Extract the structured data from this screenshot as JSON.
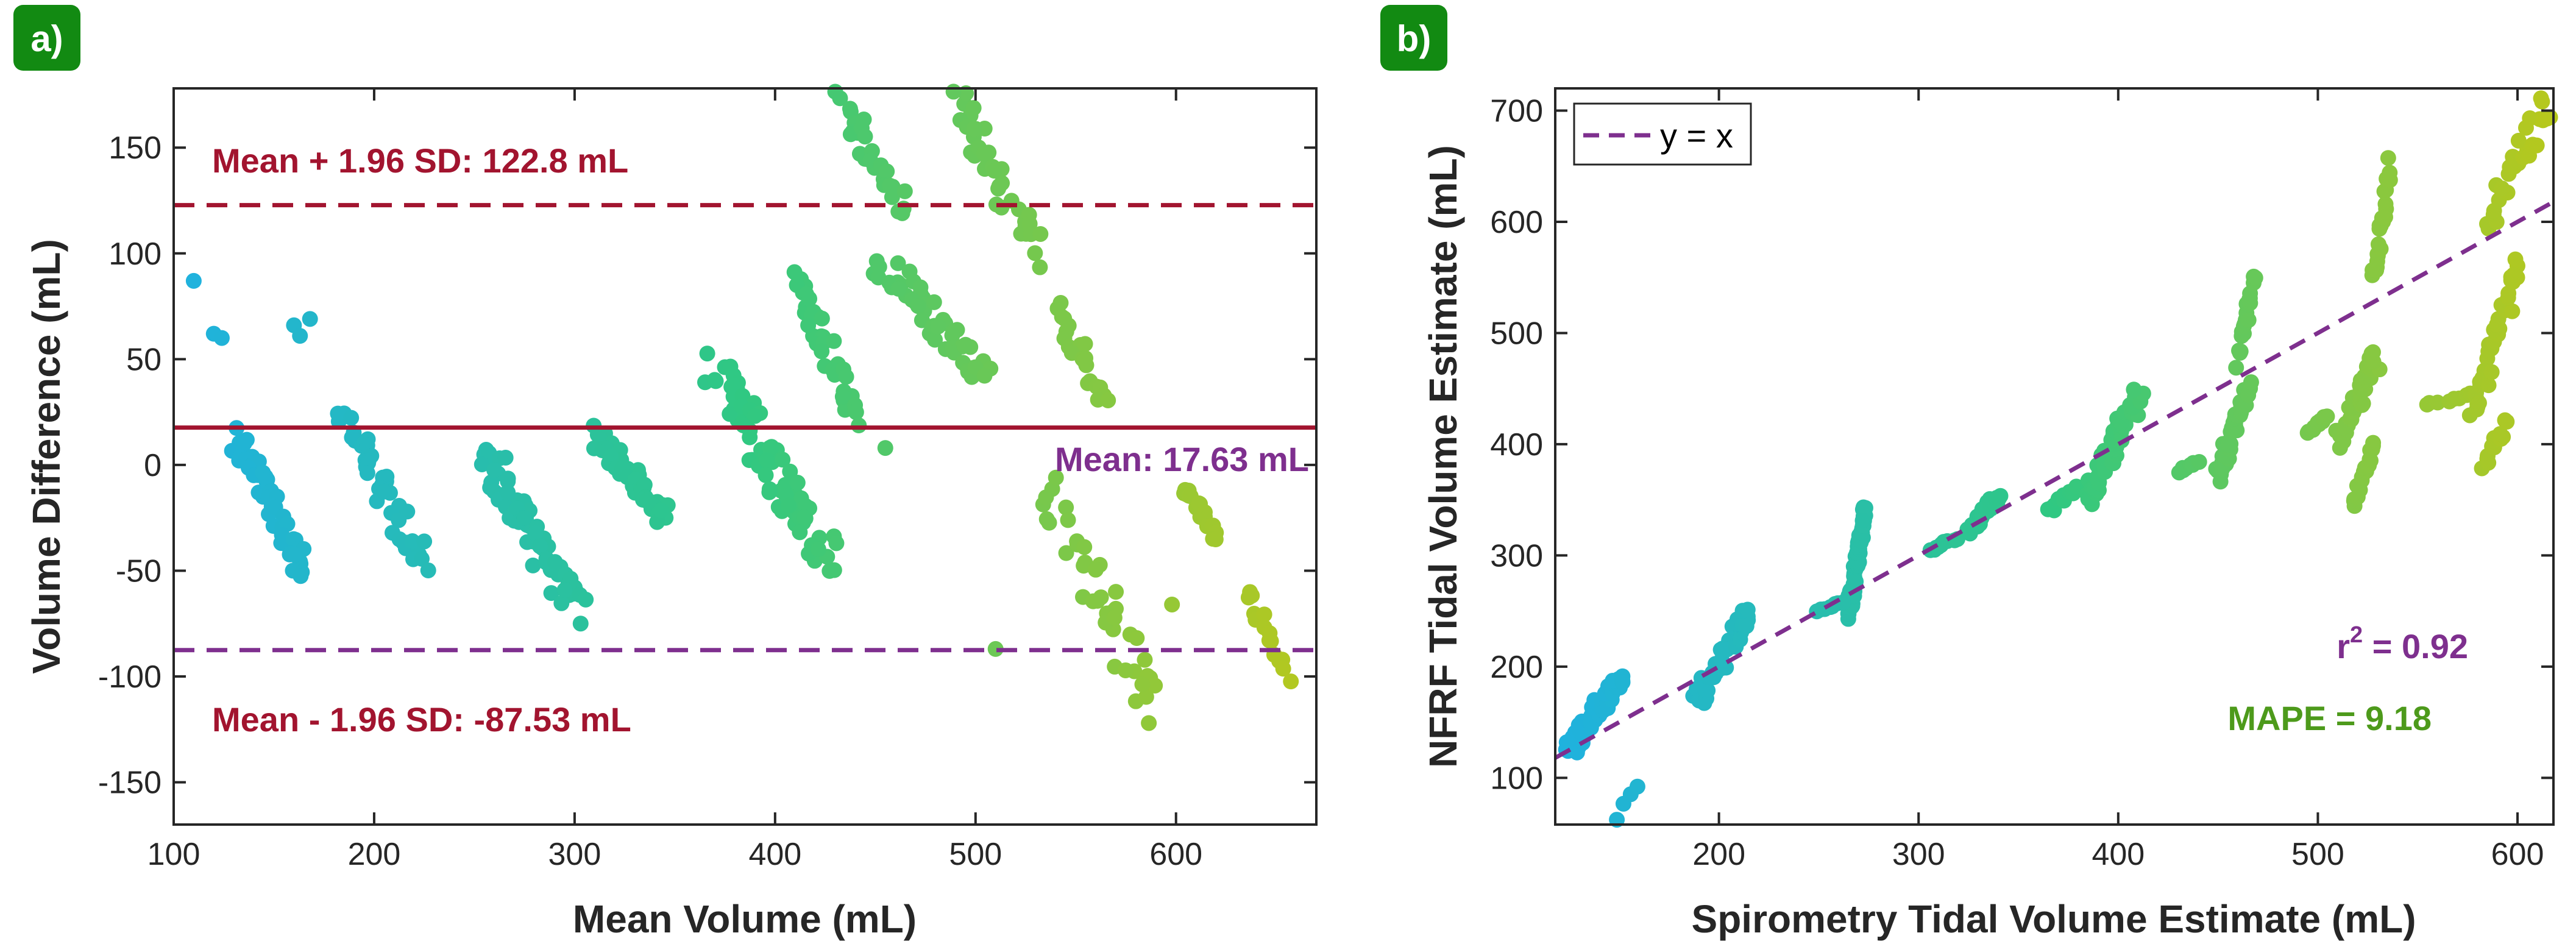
{
  "colors": {
    "badge": "#128a12",
    "mean_line": "#a2142f",
    "lower_line": "#7e2f8e",
    "mean_label": "#7e2f8e",
    "r2_label": "#7e2f8e",
    "mape_label": "#4d9a1b",
    "identity_line": "#7e2f8e",
    "point_low": "#1fb1e0",
    "point_high": "#b8c81c",
    "axis": "#262626"
  },
  "chart_data": [
    {
      "panel_label": "a)",
      "type": "scatter",
      "subtype": "bland-altman",
      "xlabel": "Mean Volume (mL)",
      "ylabel": "Volume Difference (mL)",
      "xlim": [
        100,
        670
      ],
      "ylim": [
        -170,
        178
      ],
      "xticks": [
        100,
        200,
        300,
        400,
        500,
        600
      ],
      "yticks": [
        -150,
        -100,
        -50,
        0,
        50,
        100,
        150
      ],
      "grid": false,
      "reference_lines": [
        {
          "label": "Mean + 1.96 SD: 122.8 mL",
          "y": 122.8,
          "style": "dashed",
          "color": "#a2142f",
          "label_color": "#a2142f",
          "label_position": "top-left"
        },
        {
          "label": "Mean: 17.63 mL",
          "y": 17.63,
          "style": "solid",
          "color": "#a2142f",
          "label_color": "#7e2f8e",
          "label_position": "right"
        },
        {
          "label": "Mean - 1.96 SD: -87.53 mL",
          "y": -87.53,
          "style": "dashed",
          "color": "#7e2f8e",
          "label_color": "#a2142f",
          "label_position": "bottom-left"
        }
      ],
      "clusters": [
        {
          "x": [
            130,
            165
          ],
          "y": [
            15,
            -48
          ],
          "n": 55
        },
        {
          "x": [
            185,
            225
          ],
          "y": [
            25,
            -48
          ],
          "n": 45
        },
        {
          "x": [
            255,
            300
          ],
          "y": [
            5,
            -65
          ],
          "n": 70
        },
        {
          "x": [
            310,
            345
          ],
          "y": [
            15,
            -25
          ],
          "n": 55
        },
        {
          "x": [
            370,
            425
          ],
          "y": [
            45,
            -45
          ],
          "n": 75
        },
        {
          "x": [
            410,
            440
          ],
          "y": [
            90,
            20
          ],
          "n": 40
        },
        {
          "x": [
            430,
            465
          ],
          "y": [
            175,
            120
          ],
          "n": 30
        },
        {
          "x": [
            455,
            505
          ],
          "y": [
            95,
            40
          ],
          "n": 50
        },
        {
          "x": [
            490,
            530
          ],
          "y": [
            175,
            100
          ],
          "n": 40
        },
        {
          "x": [
            540,
            565
          ],
          "y": [
            75,
            30
          ],
          "n": 22
        },
        {
          "x": [
            535,
            590
          ],
          "y": [
            -10,
            -115
          ],
          "n": 40
        },
        {
          "x": [
            605,
            620
          ],
          "y": [
            -10,
            -35
          ],
          "n": 20
        },
        {
          "x": [
            635,
            655
          ],
          "y": [
            -60,
            -100
          ],
          "n": 15
        }
      ],
      "extra_points": [
        {
          "x": 110,
          "y": 87
        },
        {
          "x": 120,
          "y": 62
        },
        {
          "x": 124,
          "y": 60
        },
        {
          "x": 160,
          "y": 66
        },
        {
          "x": 163,
          "y": 61
        },
        {
          "x": 168,
          "y": 69
        },
        {
          "x": 303,
          "y": -75
        },
        {
          "x": 455,
          "y": 8
        },
        {
          "x": 510,
          "y": -87
        },
        {
          "x": 598,
          "y": -66
        },
        {
          "x": 570,
          "y": -60
        }
      ]
    },
    {
      "panel_label": "b)",
      "type": "scatter",
      "xlabel": "Spirometry Tidal Volume Estimate (mL)",
      "ylabel": "NFRF Tidal Volume Estimate (mL)",
      "xlim": [
        118,
        618
      ],
      "ylim": [
        58,
        720
      ],
      "xticks": [
        200,
        300,
        400,
        500,
        600
      ],
      "yticks": [
        100,
        200,
        300,
        400,
        500,
        600,
        700
      ],
      "grid": false,
      "legend": {
        "entries": [
          "y = x"
        ],
        "position": "top-left"
      },
      "annotations": {
        "r2_prefix": "r",
        "r2_exponent": "2",
        "r2_value": " = 0.92",
        "mape": "MAPE = 9.18"
      },
      "clusters": [
        {
          "x": [
            125,
            150
          ],
          "y": [
            125,
            190
          ],
          "n": 60
        },
        {
          "x": [
            150,
            160
          ],
          "y": [
            65,
            95
          ],
          "n": 4
        },
        {
          "x": [
            190,
            215
          ],
          "y": [
            170,
            250
          ],
          "n": 45
        },
        {
          "x": [
            265,
            273
          ],
          "y": [
            250,
            340
          ],
          "n": 70
        },
        {
          "x": [
            250,
            262
          ],
          "y": [
            250,
            258
          ],
          "n": 8
        },
        {
          "x": [
            305,
            318
          ],
          "y": [
            305,
            315
          ],
          "n": 10
        },
        {
          "x": [
            325,
            340
          ],
          "y": [
            320,
            355
          ],
          "n": 30
        },
        {
          "x": [
            365,
            378
          ],
          "y": [
            340,
            360
          ],
          "n": 10
        },
        {
          "x": [
            385,
            410
          ],
          "y": [
            350,
            445
          ],
          "n": 60
        },
        {
          "x": [
            430,
            440
          ],
          "y": [
            375,
            385
          ],
          "n": 8
        },
        {
          "x": [
            450,
            465
          ],
          "y": [
            370,
            450
          ],
          "n": 40
        },
        {
          "x": [
            460,
            468
          ],
          "y": [
            475,
            550
          ],
          "n": 20
        },
        {
          "x": [
            495,
            505
          ],
          "y": [
            410,
            425
          ],
          "n": 12
        },
        {
          "x": [
            510,
            530
          ],
          "y": [
            400,
            480
          ],
          "n": 40
        },
        {
          "x": [
            518,
            528
          ],
          "y": [
            345,
            400
          ],
          "n": 20
        },
        {
          "x": [
            528,
            536
          ],
          "y": [
            550,
            650
          ],
          "n": 25
        },
        {
          "x": [
            555,
            575
          ],
          "y": [
            435,
            445
          ],
          "n": 8
        },
        {
          "x": [
            578,
            600
          ],
          "y": [
            420,
            560
          ],
          "n": 40
        },
        {
          "x": [
            583,
            595
          ],
          "y": [
            380,
            420
          ],
          "n": 12
        },
        {
          "x": [
            585,
            615
          ],
          "y": [
            600,
            705
          ],
          "n": 30
        }
      ],
      "identity": {
        "x": [
          118,
          618
        ],
        "y": [
          118,
          618
        ]
      }
    }
  ]
}
